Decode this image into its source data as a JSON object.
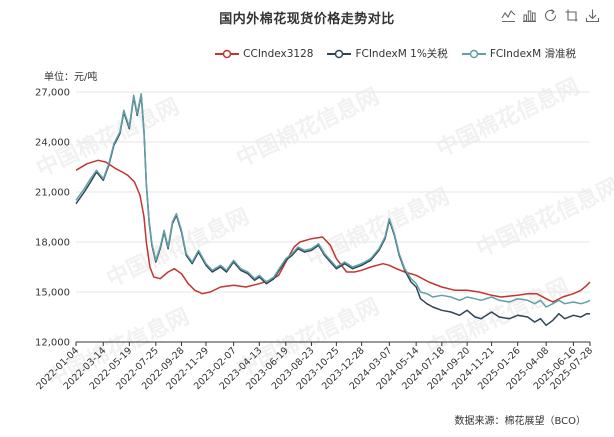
{
  "title": "国内外棉花现货价格走势对比",
  "unit_label": "单位：元/吨",
  "source_label": "数据来源：棉花展望（BCO）",
  "watermark": "中国棉花信息网",
  "toolbox": [
    {
      "name": "line-chart-icon"
    },
    {
      "name": "bar-chart-icon"
    },
    {
      "name": "refresh-icon"
    },
    {
      "name": "restore-icon"
    },
    {
      "name": "download-icon"
    }
  ],
  "colors": {
    "cc": "#c23531",
    "fc1": "#2f4554",
    "fcs": "#61a0a8"
  },
  "chart_data": {
    "type": "line",
    "title": "国内外棉花现货价格走势对比",
    "ylabel": "单位：元/吨",
    "ylim": [
      12000,
      27000
    ],
    "yticks": [
      12000,
      15000,
      18000,
      21000,
      24000,
      27000
    ],
    "ytick_labels": [
      "12,000",
      "15,000",
      "18,000",
      "21,000",
      "24,000",
      "27,000"
    ],
    "xlim": [
      "2022-01-04",
      "2025-07-28"
    ],
    "xticks": [
      "2022-01-04",
      "2022-03-14",
      "2022-05-19",
      "2022-07-25",
      "2022-09-28",
      "2022-11-29",
      "2023-02-07",
      "2023-04-13",
      "2023-06-19",
      "2023-08-23",
      "2023-10-25",
      "2023-12-28",
      "2024-03-07",
      "2024-05-14",
      "2024-07-18",
      "2024-09-20",
      "2024-11-21",
      "2025-01-26",
      "2025-04-08",
      "2025-06-16",
      "2025-07-28"
    ],
    "grid": true,
    "legend_position": "top-right",
    "series": [
      {
        "name": "CCIndex3128",
        "color": "#c23531",
        "points": [
          [
            "2022-01-04",
            22300
          ],
          [
            "2022-02-01",
            22700
          ],
          [
            "2022-03-01",
            22900
          ],
          [
            "2022-03-20",
            22800
          ],
          [
            "2022-04-15",
            22400
          ],
          [
            "2022-05-01",
            22200
          ],
          [
            "2022-05-15",
            22000
          ],
          [
            "2022-06-01",
            21600
          ],
          [
            "2022-06-15",
            20800
          ],
          [
            "2022-06-25",
            19500
          ],
          [
            "2022-07-01",
            18000
          ],
          [
            "2022-07-10",
            16500
          ],
          [
            "2022-07-20",
            15900
          ],
          [
            "2022-08-05",
            15800
          ],
          [
            "2022-08-25",
            16200
          ],
          [
            "2022-09-10",
            16400
          ],
          [
            "2022-09-28",
            16100
          ],
          [
            "2022-10-15",
            15500
          ],
          [
            "2022-11-01",
            15100
          ],
          [
            "2022-11-20",
            14900
          ],
          [
            "2022-12-10",
            15000
          ],
          [
            "2023-01-05",
            15300
          ],
          [
            "2023-02-07",
            15400
          ],
          [
            "2023-03-10",
            15300
          ],
          [
            "2023-04-13",
            15500
          ],
          [
            "2023-05-10",
            15700
          ],
          [
            "2023-06-01",
            16000
          ],
          [
            "2023-06-19",
            16800
          ],
          [
            "2023-07-10",
            17700
          ],
          [
            "2023-07-25",
            18000
          ],
          [
            "2023-08-23",
            18200
          ],
          [
            "2023-09-20",
            18300
          ],
          [
            "2023-10-10",
            17800
          ],
          [
            "2023-10-25",
            17000
          ],
          [
            "2023-11-20",
            16200
          ],
          [
            "2023-12-10",
            16200
          ],
          [
            "2023-12-28",
            16300
          ],
          [
            "2024-01-20",
            16500
          ],
          [
            "2024-02-20",
            16700
          ],
          [
            "2024-03-07",
            16600
          ],
          [
            "2024-03-25",
            16400
          ],
          [
            "2024-04-15",
            16200
          ],
          [
            "2024-05-14",
            16000
          ],
          [
            "2024-06-15",
            15600
          ],
          [
            "2024-07-18",
            15300
          ],
          [
            "2024-08-20",
            15100
          ],
          [
            "2024-09-20",
            15100
          ],
          [
            "2024-10-20",
            15000
          ],
          [
            "2024-11-21",
            14800
          ],
          [
            "2024-12-15",
            14700
          ],
          [
            "2025-01-26",
            14800
          ],
          [
            "2025-02-20",
            14900
          ],
          [
            "2025-03-15",
            14900
          ],
          [
            "2025-04-08",
            14600
          ],
          [
            "2025-04-25",
            14400
          ],
          [
            "2025-05-20",
            14700
          ],
          [
            "2025-06-16",
            14900
          ],
          [
            "2025-07-05",
            15100
          ],
          [
            "2025-07-20",
            15400
          ],
          [
            "2025-07-28",
            15600
          ]
        ]
      },
      {
        "name": "FCIndexM 1%关税",
        "color": "#2f4554",
        "points": [
          [
            "2022-01-04",
            20300
          ],
          [
            "2022-01-25",
            21000
          ],
          [
            "2022-02-10",
            21600
          ],
          [
            "2022-02-25",
            22200
          ],
          [
            "2022-03-14",
            21700
          ],
          [
            "2022-03-28",
            22600
          ],
          [
            "2022-04-10",
            23800
          ],
          [
            "2022-04-25",
            24500
          ],
          [
            "2022-05-05",
            25800
          ],
          [
            "2022-05-19",
            24800
          ],
          [
            "2022-05-30",
            26700
          ],
          [
            "2022-06-08",
            25600
          ],
          [
            "2022-06-18",
            26800
          ],
          [
            "2022-06-25",
            24600
          ],
          [
            "2022-07-01",
            21500
          ],
          [
            "2022-07-08",
            19200
          ],
          [
            "2022-07-15",
            17800
          ],
          [
            "2022-07-25",
            16800
          ],
          [
            "2022-08-05",
            17600
          ],
          [
            "2022-08-15",
            18600
          ],
          [
            "2022-08-25",
            17600
          ],
          [
            "2022-09-05",
            19100
          ],
          [
            "2022-09-15",
            19600
          ],
          [
            "2022-09-28",
            18600
          ],
          [
            "2022-10-10",
            17200
          ],
          [
            "2022-10-25",
            16700
          ],
          [
            "2022-11-10",
            17400
          ],
          [
            "2022-11-29",
            16600
          ],
          [
            "2022-12-15",
            16200
          ],
          [
            "2023-01-05",
            16500
          ],
          [
            "2023-01-20",
            16200
          ],
          [
            "2023-02-07",
            16800
          ],
          [
            "2023-02-25",
            16300
          ],
          [
            "2023-03-15",
            16100
          ],
          [
            "2023-04-01",
            15700
          ],
          [
            "2023-04-13",
            15900
          ],
          [
            "2023-05-01",
            15500
          ],
          [
            "2023-05-20",
            15800
          ],
          [
            "2023-06-05",
            16400
          ],
          [
            "2023-06-19",
            16900
          ],
          [
            "2023-07-05",
            17200
          ],
          [
            "2023-07-20",
            17600
          ],
          [
            "2023-08-05",
            17400
          ],
          [
            "2023-08-23",
            17500
          ],
          [
            "2023-09-10",
            17800
          ],
          [
            "2023-09-25",
            17200
          ],
          [
            "2023-10-10",
            16800
          ],
          [
            "2023-10-25",
            16400
          ],
          [
            "2023-11-15",
            16700
          ],
          [
            "2023-12-05",
            16400
          ],
          [
            "2023-12-28",
            16600
          ],
          [
            "2024-01-20",
            16900
          ],
          [
            "2024-02-10",
            17500
          ],
          [
            "2024-02-25",
            18200
          ],
          [
            "2024-03-07",
            19300
          ],
          [
            "2024-03-20",
            18400
          ],
          [
            "2024-04-01",
            17200
          ],
          [
            "2024-04-15",
            16300
          ],
          [
            "2024-05-01",
            15600
          ],
          [
            "2024-05-14",
            15300
          ],
          [
            "2024-05-25",
            14600
          ],
          [
            "2024-06-10",
            14300
          ],
          [
            "2024-06-25",
            14100
          ],
          [
            "2024-07-18",
            13900
          ],
          [
            "2024-08-10",
            13800
          ],
          [
            "2024-09-01",
            13600
          ],
          [
            "2024-09-20",
            13900
          ],
          [
            "2024-10-10",
            13500
          ],
          [
            "2024-10-25",
            13400
          ],
          [
            "2024-11-21",
            13800
          ],
          [
            "2024-12-10",
            13500
          ],
          [
            "2025-01-05",
            13400
          ],
          [
            "2025-01-26",
            13600
          ],
          [
            "2025-02-20",
            13500
          ],
          [
            "2025-03-10",
            13200
          ],
          [
            "2025-03-25",
            13400
          ],
          [
            "2025-04-08",
            13000
          ],
          [
            "2025-04-25",
            13300
          ],
          [
            "2025-05-10",
            13700
          ],
          [
            "2025-05-25",
            13400
          ],
          [
            "2025-06-16",
            13600
          ],
          [
            "2025-07-05",
            13500
          ],
          [
            "2025-07-20",
            13700
          ],
          [
            "2025-07-28",
            13700
          ]
        ]
      },
      {
        "name": "FCIndexM 滑准税",
        "color": "#61a0a8",
        "points": [
          [
            "2022-01-04",
            20500
          ],
          [
            "2022-01-25",
            21200
          ],
          [
            "2022-02-10",
            21800
          ],
          [
            "2022-02-25",
            22300
          ],
          [
            "2022-03-14",
            21800
          ],
          [
            "2022-03-28",
            22700
          ],
          [
            "2022-04-10",
            23900
          ],
          [
            "2022-04-25",
            24600
          ],
          [
            "2022-05-05",
            25900
          ],
          [
            "2022-05-19",
            24900
          ],
          [
            "2022-05-30",
            26800
          ],
          [
            "2022-06-08",
            25700
          ],
          [
            "2022-06-18",
            26900
          ],
          [
            "2022-06-25",
            24700
          ],
          [
            "2022-07-01",
            21600
          ],
          [
            "2022-07-08",
            19300
          ],
          [
            "2022-07-15",
            17900
          ],
          [
            "2022-07-25",
            16900
          ],
          [
            "2022-08-05",
            17700
          ],
          [
            "2022-08-15",
            18700
          ],
          [
            "2022-08-25",
            17700
          ],
          [
            "2022-09-05",
            19200
          ],
          [
            "2022-09-15",
            19700
          ],
          [
            "2022-09-28",
            18700
          ],
          [
            "2022-10-10",
            17300
          ],
          [
            "2022-10-25",
            16800
          ],
          [
            "2022-11-10",
            17500
          ],
          [
            "2022-11-29",
            16700
          ],
          [
            "2022-12-15",
            16300
          ],
          [
            "2023-01-05",
            16600
          ],
          [
            "2023-01-20",
            16300
          ],
          [
            "2023-02-07",
            16900
          ],
          [
            "2023-02-25",
            16400
          ],
          [
            "2023-03-15",
            16200
          ],
          [
            "2023-04-01",
            15800
          ],
          [
            "2023-04-13",
            16000
          ],
          [
            "2023-05-01",
            15600
          ],
          [
            "2023-05-20",
            15900
          ],
          [
            "2023-06-05",
            16500
          ],
          [
            "2023-06-19",
            17000
          ],
          [
            "2023-07-05",
            17300
          ],
          [
            "2023-07-20",
            17700
          ],
          [
            "2023-08-05",
            17500
          ],
          [
            "2023-08-23",
            17600
          ],
          [
            "2023-09-10",
            17900
          ],
          [
            "2023-09-25",
            17300
          ],
          [
            "2023-10-10",
            16900
          ],
          [
            "2023-10-25",
            16500
          ],
          [
            "2023-11-15",
            16800
          ],
          [
            "2023-12-05",
            16500
          ],
          [
            "2023-12-28",
            16700
          ],
          [
            "2024-01-20",
            17000
          ],
          [
            "2024-02-10",
            17600
          ],
          [
            "2024-02-25",
            18300
          ],
          [
            "2024-03-07",
            19400
          ],
          [
            "2024-03-20",
            18500
          ],
          [
            "2024-04-01",
            17300
          ],
          [
            "2024-04-15",
            16400
          ],
          [
            "2024-05-01",
            15800
          ],
          [
            "2024-05-14",
            15500
          ],
          [
            "2024-05-25",
            15000
          ],
          [
            "2024-06-10",
            14900
          ],
          [
            "2024-06-25",
            14700
          ],
          [
            "2024-07-18",
            14800
          ],
          [
            "2024-08-10",
            14700
          ],
          [
            "2024-09-01",
            14500
          ],
          [
            "2024-09-20",
            14700
          ],
          [
            "2024-10-10",
            14600
          ],
          [
            "2024-10-25",
            14500
          ],
          [
            "2024-11-21",
            14700
          ],
          [
            "2024-12-10",
            14500
          ],
          [
            "2025-01-05",
            14400
          ],
          [
            "2025-01-26",
            14600
          ],
          [
            "2025-02-20",
            14500
          ],
          [
            "2025-03-10",
            14300
          ],
          [
            "2025-03-25",
            14500
          ],
          [
            "2025-04-08",
            14100
          ],
          [
            "2025-04-25",
            14300
          ],
          [
            "2025-05-10",
            14500
          ],
          [
            "2025-05-25",
            14300
          ],
          [
            "2025-06-16",
            14400
          ],
          [
            "2025-07-05",
            14300
          ],
          [
            "2025-07-20",
            14400
          ],
          [
            "2025-07-28",
            14500
          ]
        ]
      }
    ]
  }
}
